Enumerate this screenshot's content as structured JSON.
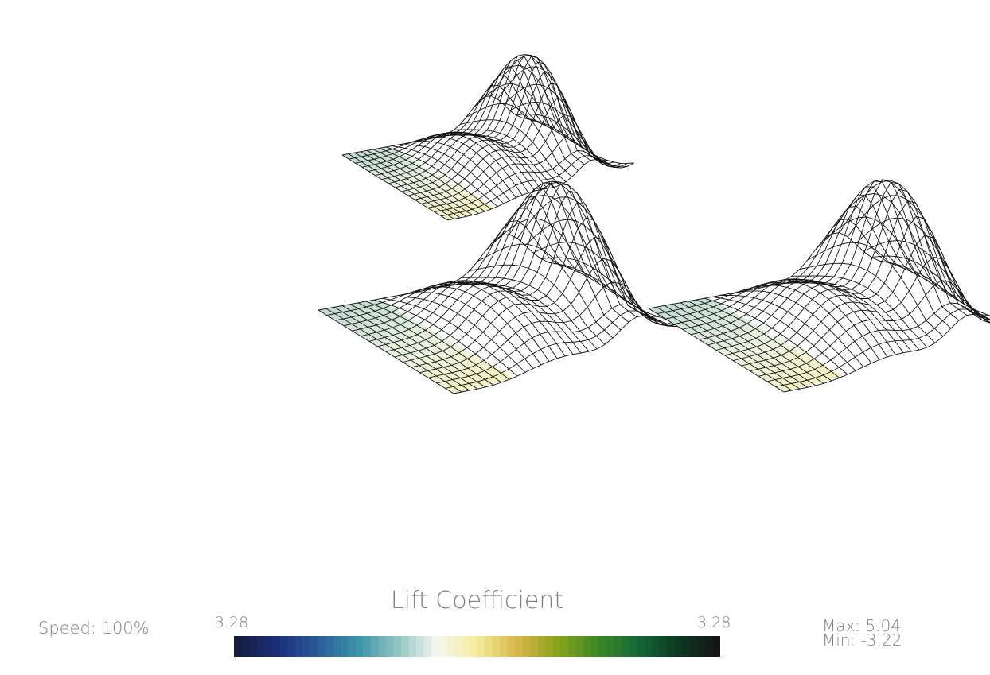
{
  "viewport": {
    "label": "3D render view",
    "mesh_style": "wireframe surface",
    "mesh_count": 3
  },
  "hud": {
    "speed": "Speed: 100%",
    "max": "Max: 5.04",
    "min": "Min: -3.22"
  },
  "legend": {
    "title": "Lift Coefficient",
    "range_min_label": "-3.28",
    "range_max_label": "3.28",
    "range": [
      -3.28,
      3.28
    ],
    "colormap": [
      "#141c40",
      "#1c2f7c",
      "#2a5a9a",
      "#3a94a8",
      "#8fc4c2",
      "#f6f7ee",
      "#f4ec9a",
      "#d9b54a",
      "#8aa41c",
      "#3e8a24",
      "#146a38",
      "#0c3a24",
      "#161616"
    ]
  },
  "colors": {
    "hud_text": "#808080",
    "mesh_stroke": "#111111",
    "background": "#ffffff"
  }
}
